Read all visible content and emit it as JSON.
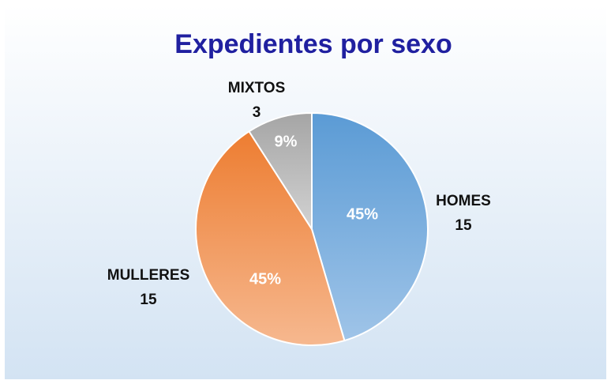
{
  "chart_data": {
    "type": "pie",
    "title": "Expedientes por sexo",
    "categories": [
      "HOMES",
      "MULLERES",
      "MIXTOS"
    ],
    "values": [
      15,
      15,
      3
    ],
    "percent_labels": [
      "45%",
      "45%",
      "9%"
    ],
    "colors": [
      "#5b9bd5",
      "#ed7d31",
      "#a5a5a5"
    ]
  }
}
